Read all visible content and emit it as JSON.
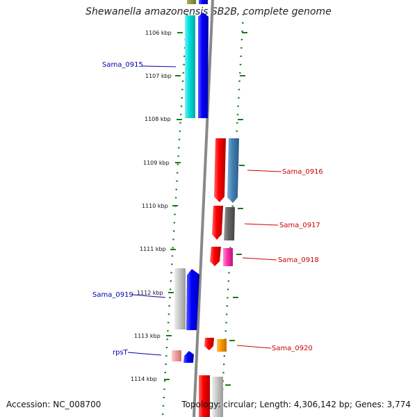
{
  "title": "Shewanella amazonensis SB2B, complete genome",
  "footer": {
    "accession": "Accession: NC_008700",
    "topology": "Topology: circular; Length: 4,306,142 bp; Genes: 3,774"
  },
  "colors": {
    "axis": "#888888",
    "tick": "#1a7a1a",
    "forward_label": "#0000aa",
    "reverse_label": "#cc0000"
  },
  "ticks": [
    {
      "label": "1106 kbp"
    },
    {
      "label": "1107 kbp"
    },
    {
      "label": "1108 kbp"
    },
    {
      "label": "1109 kbp"
    },
    {
      "label": "1110 kbp"
    },
    {
      "label": "1111 kbp"
    },
    {
      "label": "1112 kbp"
    },
    {
      "label": "1113 kbp"
    },
    {
      "label": "1114 kbp"
    }
  ],
  "gene_labels": [
    {
      "text": "Sama_0915",
      "strand": "forward"
    },
    {
      "text": "Sama_0916",
      "strand": "reverse"
    },
    {
      "text": "Sama_0917",
      "strand": "reverse"
    },
    {
      "text": "Sama_0918",
      "strand": "reverse"
    },
    {
      "text": "Sama_0919",
      "strand": "forward"
    },
    {
      "text": "Sama_0920",
      "strand": "reverse"
    },
    {
      "text": "rpsT",
      "strand": "forward"
    }
  ]
}
